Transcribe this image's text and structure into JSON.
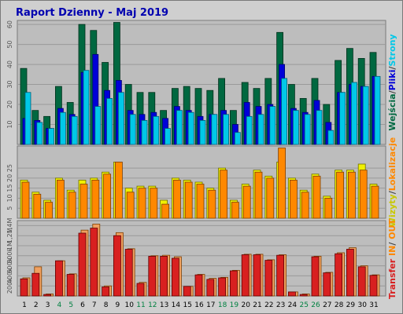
{
  "title": "Raport Dzienny -  Maj 2019",
  "colors": {
    "wejscia": "#006840",
    "pliki": "#0000d8",
    "strony": "#00c8e8",
    "wizyty": "#f0f000",
    "lokalizacje": "#ff8800",
    "in": "#ff8800",
    "out": "#d82020",
    "weekend": "#008040",
    "weekday": "#000000",
    "title": "#0000b0"
  },
  "chart_data": [
    {
      "type": "bar",
      "panel": "top",
      "x": [
        "1",
        "2",
        "3",
        "4",
        "5",
        "6",
        "7",
        "8",
        "9",
        "10",
        "11",
        "12",
        "13",
        "14",
        "15",
        "16",
        "17",
        "18",
        "19",
        "20",
        "21",
        "22",
        "23",
        "24",
        "25",
        "26",
        "27",
        "28",
        "29",
        "30",
        "31"
      ],
      "weekend_days": [
        "4",
        "5",
        "11",
        "12",
        "18",
        "19",
        "25",
        "26"
      ],
      "ylim": [
        0,
        62
      ],
      "yticks": [
        "10",
        "20",
        "30",
        "40",
        "50",
        "60"
      ],
      "series": [
        {
          "name": "Wejścia",
          "values": [
            38,
            17,
            14,
            29,
            21,
            60,
            57,
            41,
            61,
            30,
            26,
            26,
            17,
            28,
            29,
            28,
            27,
            33,
            17,
            31,
            28,
            33,
            56,
            30,
            23,
            33,
            20,
            42,
            48,
            43,
            46
          ]
        },
        {
          "name": "Pliki",
          "values": [
            13,
            12,
            8,
            18,
            15,
            36,
            45,
            27,
            32,
            17,
            15,
            16,
            13,
            19,
            17,
            14,
            15,
            17,
            10,
            21,
            19,
            20,
            40,
            18,
            16,
            22,
            11,
            26,
            30,
            29,
            34
          ]
        },
        {
          "name": "Strony",
          "values": [
            26,
            11,
            8,
            16,
            14,
            37,
            19,
            23,
            26,
            15,
            12,
            14,
            8,
            17,
            16,
            12,
            15,
            15,
            6,
            14,
            15,
            19,
            33,
            17,
            15,
            17,
            7,
            26,
            31,
            29,
            34
          ]
        }
      ],
      "right_legend": [
        "Wejścia",
        "/",
        "Pliki",
        "/",
        "Strony"
      ]
    },
    {
      "type": "bar",
      "panel": "middle",
      "x": [
        "1",
        "2",
        "3",
        "4",
        "5",
        "6",
        "7",
        "8",
        "9",
        "10",
        "11",
        "12",
        "13",
        "14",
        "15",
        "16",
        "17",
        "18",
        "19",
        "20",
        "21",
        "22",
        "23",
        "24",
        "25",
        "26",
        "27",
        "28",
        "29",
        "30",
        "31"
      ],
      "ylim": [
        0,
        36
      ],
      "yticks": [
        "5",
        "10",
        "15",
        "20",
        "25"
      ],
      "series": [
        {
          "name": "Wizyty",
          "values": [
            19,
            13,
            9,
            20,
            14,
            19,
            20,
            23,
            28,
            15,
            16,
            16,
            9,
            20,
            19,
            18,
            15,
            25,
            9,
            17,
            24,
            21,
            28,
            20,
            14,
            22,
            11,
            24,
            24,
            27,
            17
          ]
        },
        {
          "name": "Lokalizacje",
          "values": [
            18,
            12,
            8,
            19,
            13,
            17,
            19,
            22,
            28,
            13,
            15,
            15,
            7,
            19,
            18,
            17,
            14,
            24,
            8,
            16,
            23,
            20,
            35,
            19,
            13,
            21,
            10,
            23,
            23,
            24,
            16
          ]
        }
      ],
      "right_legend": [
        "Wizyty",
        "/",
        "Lokalizacje"
      ]
    },
    {
      "type": "bar",
      "panel": "bottom",
      "x": [
        "1",
        "2",
        "3",
        "4",
        "5",
        "6",
        "7",
        "8",
        "9",
        "10",
        "11",
        "12",
        "13",
        "14",
        "15",
        "16",
        "17",
        "18",
        "19",
        "20",
        "21",
        "22",
        "23",
        "24",
        "25",
        "26",
        "27",
        "28",
        "29",
        "30",
        "31"
      ],
      "ylim": [
        0,
        1500000
      ],
      "yticks": [
        "200k",
        "400k",
        "600k",
        "800k",
        "1M",
        "1,2M",
        "1,4M"
      ],
      "series": [
        {
          "name": "IN",
          "values": [
            340000,
            450000,
            30000,
            700000,
            430000,
            1250000,
            1350000,
            180000,
            1200000,
            930000,
            250000,
            790000,
            790000,
            750000,
            190000,
            420000,
            330000,
            360000,
            500000,
            820000,
            820000,
            710000,
            810000,
            80000,
            30000,
            780000,
            460000,
            840000,
            930000,
            580000,
            410000
          ]
        },
        {
          "name": "OUT",
          "values": [
            360000,
            580000,
            40000,
            700000,
            440000,
            1310000,
            1430000,
            200000,
            1260000,
            940000,
            270000,
            800000,
            810000,
            780000,
            190000,
            430000,
            350000,
            370000,
            510000,
            830000,
            830000,
            720000,
            820000,
            80000,
            40000,
            790000,
            470000,
            860000,
            960000,
            600000,
            420000
          ]
        }
      ],
      "right_legend": [
        "Transfer",
        "IN",
        "/",
        "OUT"
      ]
    }
  ]
}
